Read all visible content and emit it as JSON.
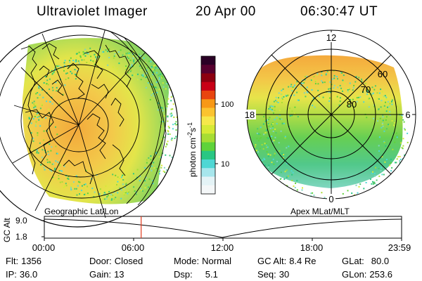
{
  "header": {
    "title": "Ultraviolet Imager",
    "date": "20 Apr 00",
    "time": "06:30:47 UT"
  },
  "colorbar": {
    "unit_label": "photon cm",
    "unit_exp1": "-2",
    "unit_mid": "s",
    "unit_exp2": "-1",
    "ticks": [
      "100",
      "10"
    ],
    "colors_top_to_bottom": [
      "#2a0026",
      "#57002f",
      "#8d0010",
      "#c80016",
      "#e8450f",
      "#f79816",
      "#fbc32f",
      "#f7e84a",
      "#d7ea36",
      "#a7dd34",
      "#5fd33a",
      "#29c783",
      "#4fd7d4",
      "#a7e6ec",
      "#e4f3f6",
      "#f4f7f8"
    ]
  },
  "left_map": {
    "projection_label": "Geographic Lat/Lon"
  },
  "right_map": {
    "projection_label": "Apex MLat/MLT",
    "mlt_labels": [
      "12",
      "18",
      "6",
      "0"
    ],
    "lat_labels": [
      "60",
      "70",
      "80"
    ]
  },
  "timeline": {
    "axis_label": "GC Alt",
    "y_ticks": [
      "9.0",
      "1.8"
    ],
    "x_ticks": [
      "00:00",
      "06:00",
      "12:00",
      "18:00",
      "23:59"
    ],
    "current_marker_hours": 6.5,
    "marker_color": "#e23a1e"
  },
  "info": {
    "flt_label": "Flt:",
    "flt": "1356",
    "ip_label": "IP:",
    "ip": "36.0",
    "door_label": "Door:",
    "door": "Closed",
    "gain_label": "Gain:",
    "gain": "13",
    "mode_label": "Mode:",
    "mode": "Normal",
    "dsp_label": "Dsp:",
    "dsp": "5.1",
    "gcalt_label": "GC Alt:",
    "gcalt": "8.4 Re",
    "seq_label": "Seq:",
    "seq": "30",
    "glat_label": "GLat:",
    "glat": "80.0",
    "glon_label": "GLon:",
    "glon": "253.6"
  }
}
